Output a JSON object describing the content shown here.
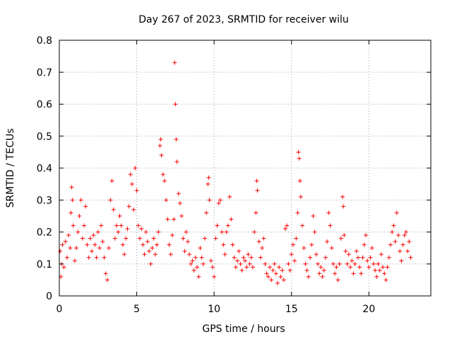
{
  "chart_data": {
    "type": "scatter",
    "title": "Day 267 of 2023, SRMTID for receiver wilu",
    "xlabel": "GPS time / hours",
    "ylabel": "SRMTID / TECUs",
    "xlim": [
      0,
      24
    ],
    "ylim": [
      0,
      0.8
    ],
    "xticks": [
      0,
      5,
      10,
      15,
      20
    ],
    "xtick_labels": [
      "0",
      "5",
      "10",
      "15",
      "20"
    ],
    "yticks": [
      0,
      0.1,
      0.2,
      0.3,
      0.4,
      0.5,
      0.6,
      0.7,
      0.8
    ],
    "ytick_labels": [
      "0",
      "0.1",
      "0.2",
      "0.3",
      "0.4",
      "0.5",
      "0.6",
      "0.7",
      "0.8"
    ],
    "grid": true,
    "marker": "plus",
    "series": [
      {
        "name": "SRMTID",
        "color": "#ff0000",
        "points": [
          [
            0.05,
            0.14
          ],
          [
            0.1,
            0.06
          ],
          [
            0.15,
            0.1
          ],
          [
            0.2,
            0.16
          ],
          [
            0.3,
            0.09
          ],
          [
            0.4,
            0.17
          ],
          [
            0.5,
            0.12
          ],
          [
            0.6,
            0.19
          ],
          [
            0.7,
            0.15
          ],
          [
            0.75,
            0.26
          ],
          [
            0.8,
            0.34
          ],
          [
            0.85,
            0.3
          ],
          [
            0.9,
            0.22
          ],
          [
            1.0,
            0.11
          ],
          [
            1.1,
            0.15
          ],
          [
            1.2,
            0.2
          ],
          [
            1.3,
            0.25
          ],
          [
            1.4,
            0.3
          ],
          [
            1.5,
            0.18
          ],
          [
            1.6,
            0.22
          ],
          [
            1.7,
            0.28
          ],
          [
            1.8,
            0.16
          ],
          [
            1.9,
            0.12
          ],
          [
            2.0,
            0.18
          ],
          [
            2.1,
            0.14
          ],
          [
            2.2,
            0.19
          ],
          [
            2.3,
            0.16
          ],
          [
            2.4,
            0.12
          ],
          [
            2.5,
            0.2
          ],
          [
            2.6,
            0.15
          ],
          [
            2.7,
            0.22
          ],
          [
            2.8,
            0.17
          ],
          [
            2.9,
            0.12
          ],
          [
            3.0,
            0.07
          ],
          [
            3.1,
            0.05
          ],
          [
            3.2,
            0.15
          ],
          [
            3.3,
            0.3
          ],
          [
            3.4,
            0.36
          ],
          [
            3.5,
            0.27
          ],
          [
            3.6,
            0.18
          ],
          [
            3.7,
            0.22
          ],
          [
            3.8,
            0.2
          ],
          [
            3.9,
            0.25
          ],
          [
            4.0,
            0.22
          ],
          [
            4.1,
            0.16
          ],
          [
            4.2,
            0.13
          ],
          [
            4.3,
            0.18
          ],
          [
            4.4,
            0.21
          ],
          [
            4.5,
            0.28
          ],
          [
            4.6,
            0.38
          ],
          [
            4.7,
            0.35
          ],
          [
            4.8,
            0.27
          ],
          [
            4.9,
            0.4
          ],
          [
            5.0,
            0.33
          ],
          [
            5.1,
            0.22
          ],
          [
            5.2,
            0.18
          ],
          [
            5.3,
            0.21
          ],
          [
            5.4,
            0.16
          ],
          [
            5.5,
            0.13
          ],
          [
            5.6,
            0.2
          ],
          [
            5.7,
            0.17
          ],
          [
            5.8,
            0.14
          ],
          [
            5.9,
            0.1
          ],
          [
            6.0,
            0.15
          ],
          [
            6.1,
            0.18
          ],
          [
            6.2,
            0.13
          ],
          [
            6.3,
            0.16
          ],
          [
            6.4,
            0.2
          ],
          [
            6.5,
            0.47
          ],
          [
            6.55,
            0.49
          ],
          [
            6.6,
            0.44
          ],
          [
            6.7,
            0.38
          ],
          [
            6.8,
            0.36
          ],
          [
            6.9,
            0.3
          ],
          [
            7.0,
            0.24
          ],
          [
            7.1,
            0.16
          ],
          [
            7.2,
            0.13
          ],
          [
            7.3,
            0.19
          ],
          [
            7.4,
            0.24
          ],
          [
            7.45,
            0.73
          ],
          [
            7.5,
            0.6
          ],
          [
            7.55,
            0.49
          ],
          [
            7.6,
            0.42
          ],
          [
            7.7,
            0.32
          ],
          [
            7.8,
            0.29
          ],
          [
            7.9,
            0.25
          ],
          [
            8.0,
            0.18
          ],
          [
            8.1,
            0.14
          ],
          [
            8.2,
            0.2
          ],
          [
            8.3,
            0.17
          ],
          [
            8.4,
            0.13
          ],
          [
            8.5,
            0.1
          ],
          [
            8.6,
            0.11
          ],
          [
            8.7,
            0.08
          ],
          [
            8.8,
            0.12
          ],
          [
            8.9,
            0.09
          ],
          [
            9.0,
            0.06
          ],
          [
            9.1,
            0.15
          ],
          [
            9.2,
            0.12
          ],
          [
            9.3,
            0.1
          ],
          [
            9.4,
            0.18
          ],
          [
            9.5,
            0.26
          ],
          [
            9.6,
            0.35
          ],
          [
            9.65,
            0.37
          ],
          [
            9.7,
            0.3
          ],
          [
            9.8,
            0.11
          ],
          [
            9.9,
            0.09
          ],
          [
            10.0,
            0.06
          ],
          [
            10.1,
            0.18
          ],
          [
            10.2,
            0.22
          ],
          [
            10.3,
            0.29
          ],
          [
            10.4,
            0.3
          ],
          [
            10.5,
            0.2
          ],
          [
            10.6,
            0.16
          ],
          [
            10.7,
            0.13
          ],
          [
            10.8,
            0.2
          ],
          [
            10.9,
            0.22
          ],
          [
            11.0,
            0.31
          ],
          [
            11.1,
            0.24
          ],
          [
            11.2,
            0.16
          ],
          [
            11.3,
            0.12
          ],
          [
            11.4,
            0.09
          ],
          [
            11.5,
            0.11
          ],
          [
            11.6,
            0.14
          ],
          [
            11.7,
            0.1
          ],
          [
            11.8,
            0.08
          ],
          [
            11.9,
            0.12
          ],
          [
            12.0,
            0.11
          ],
          [
            12.1,
            0.09
          ],
          [
            12.2,
            0.13
          ],
          [
            12.3,
            0.1
          ],
          [
            12.4,
            0.12
          ],
          [
            12.5,
            0.09
          ],
          [
            12.6,
            0.2
          ],
          [
            12.7,
            0.26
          ],
          [
            12.75,
            0.36
          ],
          [
            12.8,
            0.33
          ],
          [
            12.9,
            0.17
          ],
          [
            13.0,
            0.12
          ],
          [
            13.1,
            0.15
          ],
          [
            13.2,
            0.18
          ],
          [
            13.3,
            0.1
          ],
          [
            13.4,
            0.07
          ],
          [
            13.5,
            0.06
          ],
          [
            13.6,
            0.09
          ],
          [
            13.7,
            0.05
          ],
          [
            13.8,
            0.08
          ],
          [
            13.9,
            0.1
          ],
          [
            14.0,
            0.07
          ],
          [
            14.1,
            0.04
          ],
          [
            14.2,
            0.09
          ],
          [
            14.3,
            0.06
          ],
          [
            14.4,
            0.08
          ],
          [
            14.5,
            0.05
          ],
          [
            14.6,
            0.21
          ],
          [
            14.7,
            0.22
          ],
          [
            14.8,
            0.1
          ],
          [
            14.9,
            0.08
          ],
          [
            15.0,
            0.13
          ],
          [
            15.1,
            0.16
          ],
          [
            15.2,
            0.11
          ],
          [
            15.3,
            0.18
          ],
          [
            15.4,
            0.26
          ],
          [
            15.45,
            0.45
          ],
          [
            15.5,
            0.43
          ],
          [
            15.55,
            0.36
          ],
          [
            15.6,
            0.31
          ],
          [
            15.7,
            0.22
          ],
          [
            15.8,
            0.15
          ],
          [
            15.9,
            0.1
          ],
          [
            16.0,
            0.08
          ],
          [
            16.1,
            0.06
          ],
          [
            16.2,
            0.12
          ],
          [
            16.3,
            0.16
          ],
          [
            16.4,
            0.25
          ],
          [
            16.5,
            0.2
          ],
          [
            16.6,
            0.13
          ],
          [
            16.7,
            0.1
          ],
          [
            16.8,
            0.07
          ],
          [
            16.9,
            0.09
          ],
          [
            17.0,
            0.06
          ],
          [
            17.1,
            0.08
          ],
          [
            17.2,
            0.12
          ],
          [
            17.3,
            0.17
          ],
          [
            17.4,
            0.26
          ],
          [
            17.5,
            0.22
          ],
          [
            17.6,
            0.15
          ],
          [
            17.7,
            0.1
          ],
          [
            17.8,
            0.07
          ],
          [
            17.9,
            0.09
          ],
          [
            18.0,
            0.05
          ],
          [
            18.1,
            0.1
          ],
          [
            18.2,
            0.18
          ],
          [
            18.3,
            0.31
          ],
          [
            18.35,
            0.28
          ],
          [
            18.4,
            0.19
          ],
          [
            18.5,
            0.14
          ],
          [
            18.6,
            0.1
          ],
          [
            18.7,
            0.13
          ],
          [
            18.8,
            0.09
          ],
          [
            18.9,
            0.11
          ],
          [
            19.0,
            0.07
          ],
          [
            19.1,
            0.1
          ],
          [
            19.2,
            0.14
          ],
          [
            19.3,
            0.12
          ],
          [
            19.4,
            0.09
          ],
          [
            19.5,
            0.07
          ],
          [
            19.6,
            0.12
          ],
          [
            19.7,
            0.16
          ],
          [
            19.8,
            0.19
          ],
          [
            19.9,
            0.11
          ],
          [
            20.0,
            0.09
          ],
          [
            20.1,
            0.12
          ],
          [
            20.2,
            0.15
          ],
          [
            20.3,
            0.1
          ],
          [
            20.4,
            0.08
          ],
          [
            20.5,
            0.06
          ],
          [
            20.6,
            0.1
          ],
          [
            20.7,
            0.08
          ],
          [
            20.8,
            0.13
          ],
          [
            20.9,
            0.09
          ],
          [
            21.0,
            0.07
          ],
          [
            21.1,
            0.05
          ],
          [
            21.2,
            0.09
          ],
          [
            21.3,
            0.12
          ],
          [
            21.4,
            0.16
          ],
          [
            21.5,
            0.2
          ],
          [
            21.6,
            0.22
          ],
          [
            21.7,
            0.17
          ],
          [
            21.8,
            0.26
          ],
          [
            21.9,
            0.19
          ],
          [
            22.0,
            0.14
          ],
          [
            22.1,
            0.11
          ],
          [
            22.2,
            0.16
          ],
          [
            22.3,
            0.19
          ],
          [
            22.4,
            0.2
          ],
          [
            22.5,
            0.14
          ],
          [
            22.6,
            0.17
          ],
          [
            22.7,
            0.12
          ]
        ]
      }
    ]
  }
}
